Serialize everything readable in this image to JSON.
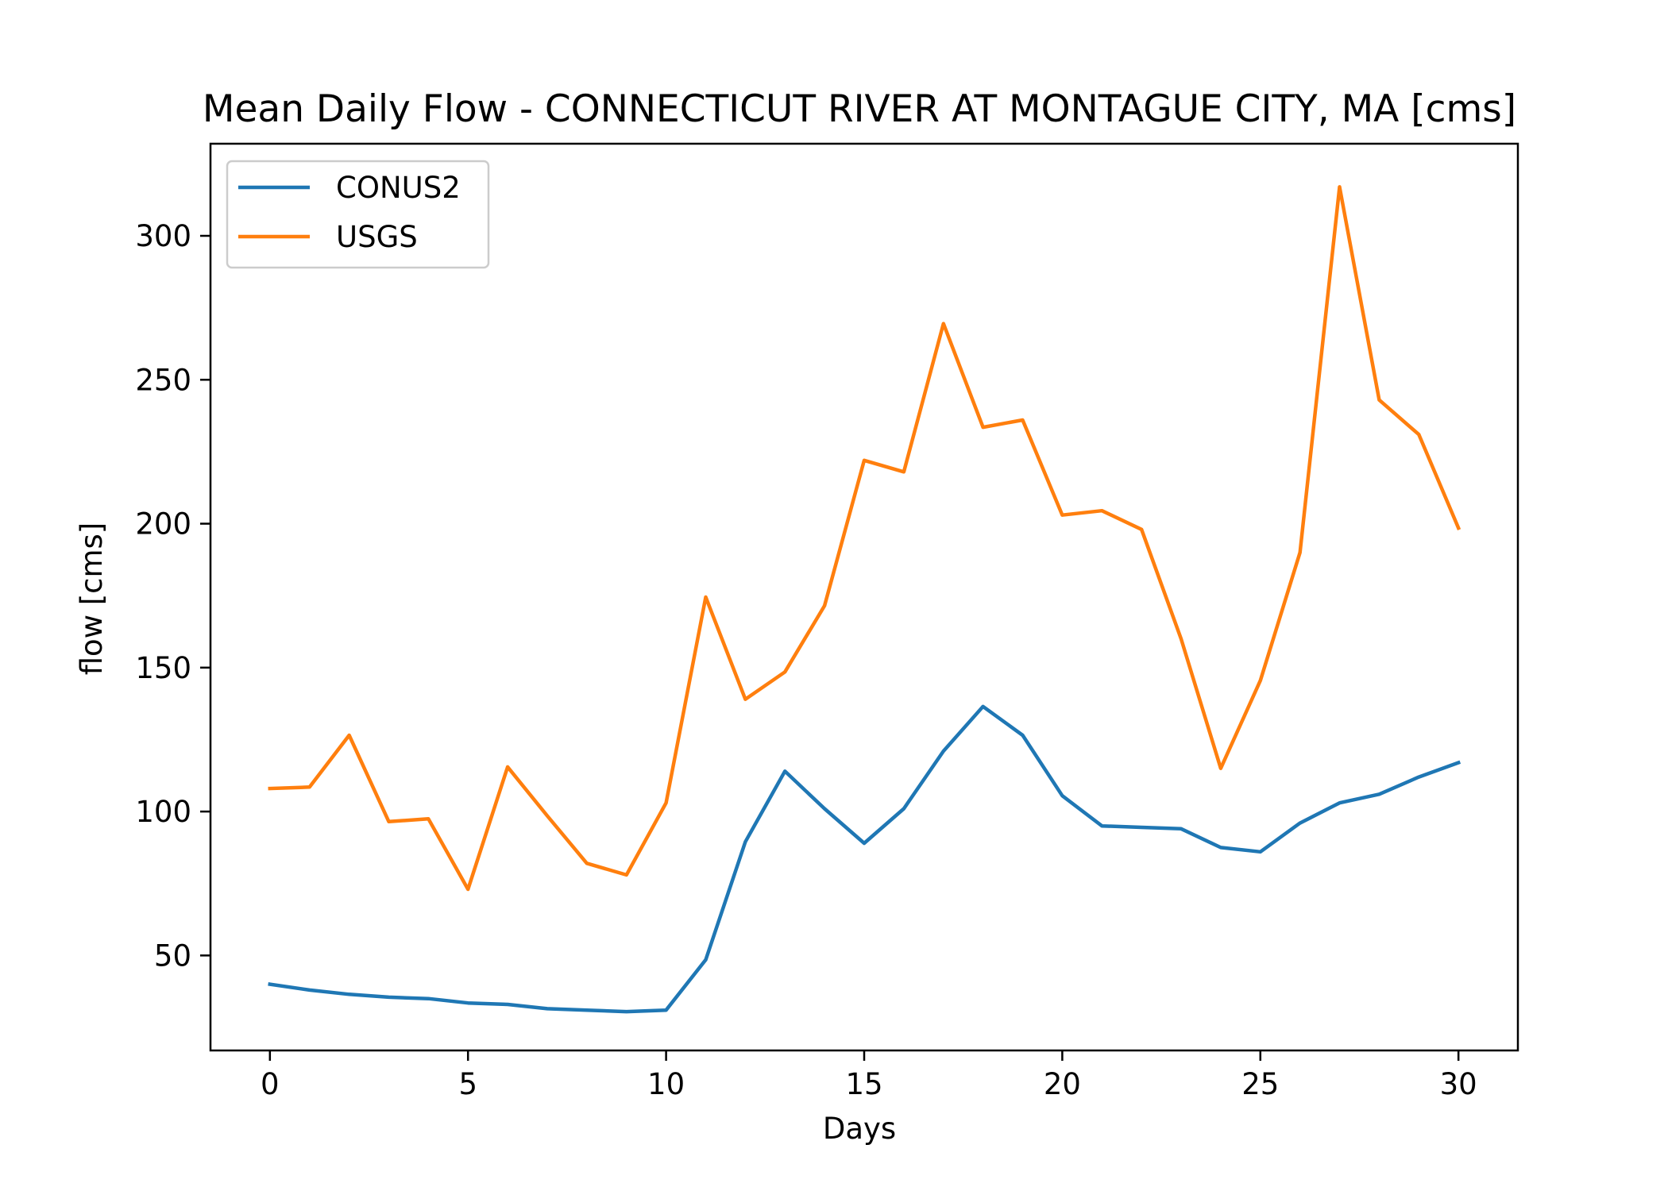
{
  "chart_data": {
    "type": "line",
    "title": "Mean Daily Flow - CONNECTICUT RIVER AT MONTAGUE CITY, MA [cms]",
    "xlabel": "Days",
    "ylabel": "flow [cms]",
    "xlim": [
      -1.5,
      31.5
    ],
    "ylim": [
      17,
      332
    ],
    "xticks": [
      0,
      5,
      10,
      15,
      20,
      25,
      30
    ],
    "yticks": [
      50,
      100,
      150,
      200,
      250,
      300
    ],
    "grid": false,
    "legend_position": "top-left",
    "x": [
      0,
      1,
      2,
      3,
      4,
      5,
      6,
      7,
      8,
      9,
      10,
      11,
      12,
      13,
      14,
      15,
      16,
      17,
      18,
      19,
      20,
      21,
      22,
      23,
      24,
      25,
      26,
      27,
      28,
      29,
      30
    ],
    "series": [
      {
        "name": "CONUS2",
        "color": "#1f77b4",
        "values": [
          40,
          38,
          36.5,
          35.5,
          35,
          33.5,
          33,
          31.5,
          31,
          30.5,
          31,
          48.5,
          89.5,
          114,
          101,
          89,
          101,
          121,
          136.5,
          126.5,
          105.5,
          95,
          94.5,
          94,
          87.5,
          86,
          96,
          103,
          106,
          112,
          117
        ]
      },
      {
        "name": "USGS",
        "color": "#ff7f0e",
        "values": [
          108,
          108.5,
          126.5,
          96.5,
          97.5,
          73,
          115.5,
          98.5,
          82,
          78,
          103,
          174.5,
          139,
          148.5,
          171.5,
          222,
          218,
          269.5,
          233.5,
          236,
          203,
          204.5,
          198,
          160,
          115,
          145.5,
          190,
          317,
          243,
          231,
          198.5
        ]
      }
    ]
  }
}
